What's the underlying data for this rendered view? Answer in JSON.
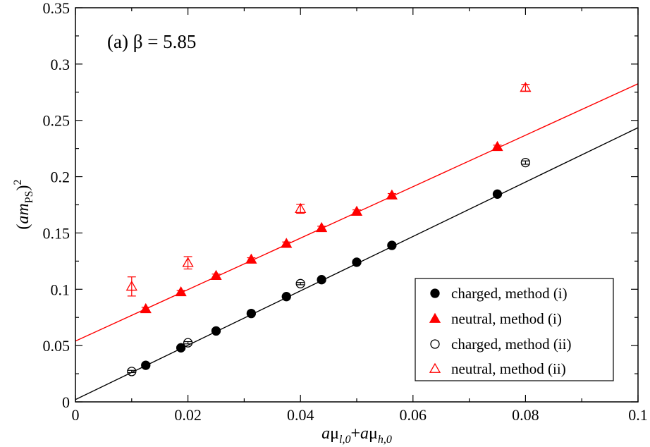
{
  "chart_data": {
    "type": "scatter",
    "panel_label": "(a) β = 5.85",
    "xlim": [
      0,
      0.1
    ],
    "ylim": [
      0,
      0.35
    ],
    "xticks": [
      0,
      0.02,
      0.04,
      0.06,
      0.08,
      0.1
    ],
    "xtick_labels": [
      "0",
      "0.02",
      "0.04",
      "0.06",
      "0.08",
      "0.1"
    ],
    "yticks": [
      0,
      0.05,
      0.1,
      0.15,
      0.2,
      0.25,
      0.3,
      0.35
    ],
    "ytick_labels": [
      "0",
      "0.05",
      "0.1",
      "0.15",
      "0.2",
      "0.25",
      "0.3",
      "0.35"
    ],
    "xlabel": {
      "a": "a",
      "mu": "μ",
      "sub1": "l,0",
      "plus": "+",
      "sub2": "h,0"
    },
    "ylabel": {
      "open": "(",
      "am": "am",
      "sub": "PS",
      "close": ")",
      "sup": "2"
    },
    "series": [
      {
        "name": "charged, method (i)",
        "marker": "circle-filled",
        "color": "#000000",
        "points": [
          {
            "x": 0.0125,
            "y": 0.0325,
            "err": 0.001
          },
          {
            "x": 0.01875,
            "y": 0.048,
            "err": 0.001
          },
          {
            "x": 0.025,
            "y": 0.063,
            "err": 0.001
          },
          {
            "x": 0.03125,
            "y": 0.0785,
            "err": 0.001
          },
          {
            "x": 0.0375,
            "y": 0.0935,
            "err": 0.001
          },
          {
            "x": 0.04375,
            "y": 0.1085,
            "err": 0.001
          },
          {
            "x": 0.05,
            "y": 0.124,
            "err": 0.001
          },
          {
            "x": 0.05625,
            "y": 0.139,
            "err": 0.001
          },
          {
            "x": 0.075,
            "y": 0.1845,
            "err": 0.001
          }
        ]
      },
      {
        "name": "neutral, method (i)",
        "marker": "triangle-filled",
        "color": "#ff0000",
        "points": [
          {
            "x": 0.0125,
            "y": 0.0825,
            "err": 0.0015
          },
          {
            "x": 0.01875,
            "y": 0.0975,
            "err": 0.0015
          },
          {
            "x": 0.025,
            "y": 0.112,
            "err": 0.0015
          },
          {
            "x": 0.03125,
            "y": 0.1265,
            "err": 0.0015
          },
          {
            "x": 0.0375,
            "y": 0.1405,
            "err": 0.0015
          },
          {
            "x": 0.04375,
            "y": 0.1545,
            "err": 0.0015
          },
          {
            "x": 0.05,
            "y": 0.169,
            "err": 0.0015
          },
          {
            "x": 0.05625,
            "y": 0.1835,
            "err": 0.0015
          },
          {
            "x": 0.075,
            "y": 0.2265,
            "err": 0.0015
          }
        ]
      },
      {
        "name": "charged, method (ii)",
        "marker": "circle-open",
        "color": "#000000",
        "points": [
          {
            "x": 0.01,
            "y": 0.027,
            "err": 0.001
          },
          {
            "x": 0.02,
            "y": 0.0525,
            "err": 0.001
          },
          {
            "x": 0.04,
            "y": 0.105,
            "err": 0.001
          },
          {
            "x": 0.08,
            "y": 0.2125,
            "err": 0.0015
          }
        ]
      },
      {
        "name": "neutral, method (ii)",
        "marker": "triangle-open",
        "color": "#ff0000",
        "points": [
          {
            "x": 0.01,
            "y": 0.1025,
            "err": 0.0085
          },
          {
            "x": 0.02,
            "y": 0.1235,
            "err": 0.0055
          },
          {
            "x": 0.04,
            "y": 0.1715,
            "err": 0.004
          },
          {
            "x": 0.08,
            "y": 0.279,
            "err": 0.003
          }
        ]
      }
    ],
    "fits": [
      {
        "name": "charged fit",
        "color": "#000000",
        "x": [
          0,
          0.1
        ],
        "y": [
          0.002,
          0.2435
        ]
      },
      {
        "name": "neutral fit",
        "color": "#ff0000",
        "x": [
          0,
          0.1
        ],
        "y": [
          0.054,
          0.2825
        ]
      }
    ],
    "legend_position": "bottom-right"
  }
}
